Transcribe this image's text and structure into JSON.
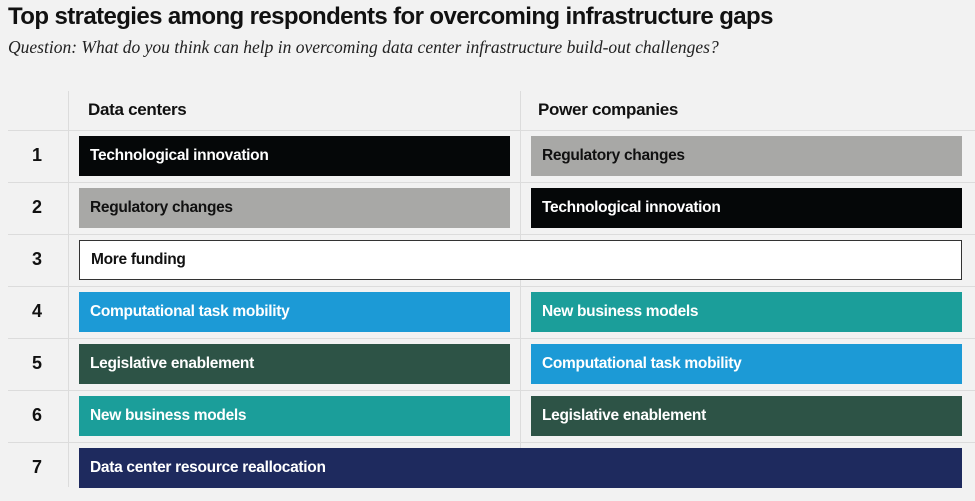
{
  "title": "Top strategies among respondents for overcoming infrastructure gaps",
  "subtitle": "Question: What do you think can help in overcoming data center infrastructure build-out challenges?",
  "colors": {
    "technological_innovation": "#050708",
    "regulatory_changes": "#a8a8a6",
    "more_funding": "#ffffff",
    "computational_task_mobility": "#1c9ad6",
    "new_business_models": "#1b9e9a",
    "legislative_enablement": "#2d5346",
    "data_center_resource_reallocation": "#1e2a5e"
  },
  "chart_data": {
    "type": "table",
    "columns": [
      "Data centers",
      "Power companies"
    ],
    "rows": [
      {
        "rank": "1",
        "data_centers": "Technological innovation",
        "power_companies": "Regulatory changes",
        "shared": false
      },
      {
        "rank": "2",
        "data_centers": "Regulatory changes",
        "power_companies": "Technological innovation",
        "shared": false
      },
      {
        "rank": "3",
        "data_centers": "More funding",
        "power_companies": "More funding",
        "shared": true
      },
      {
        "rank": "4",
        "data_centers": "Computational task mobility",
        "power_companies": "New business models",
        "shared": false
      },
      {
        "rank": "5",
        "data_centers": "Legislative enablement",
        "power_companies": "Computational task mobility",
        "shared": false
      },
      {
        "rank": "6",
        "data_centers": "New business models",
        "power_companies": "Legislative enablement",
        "shared": false
      },
      {
        "rank": "7",
        "data_centers": "Data center resource reallocation",
        "power_companies": "Data center resource reallocation",
        "shared": true
      }
    ]
  }
}
